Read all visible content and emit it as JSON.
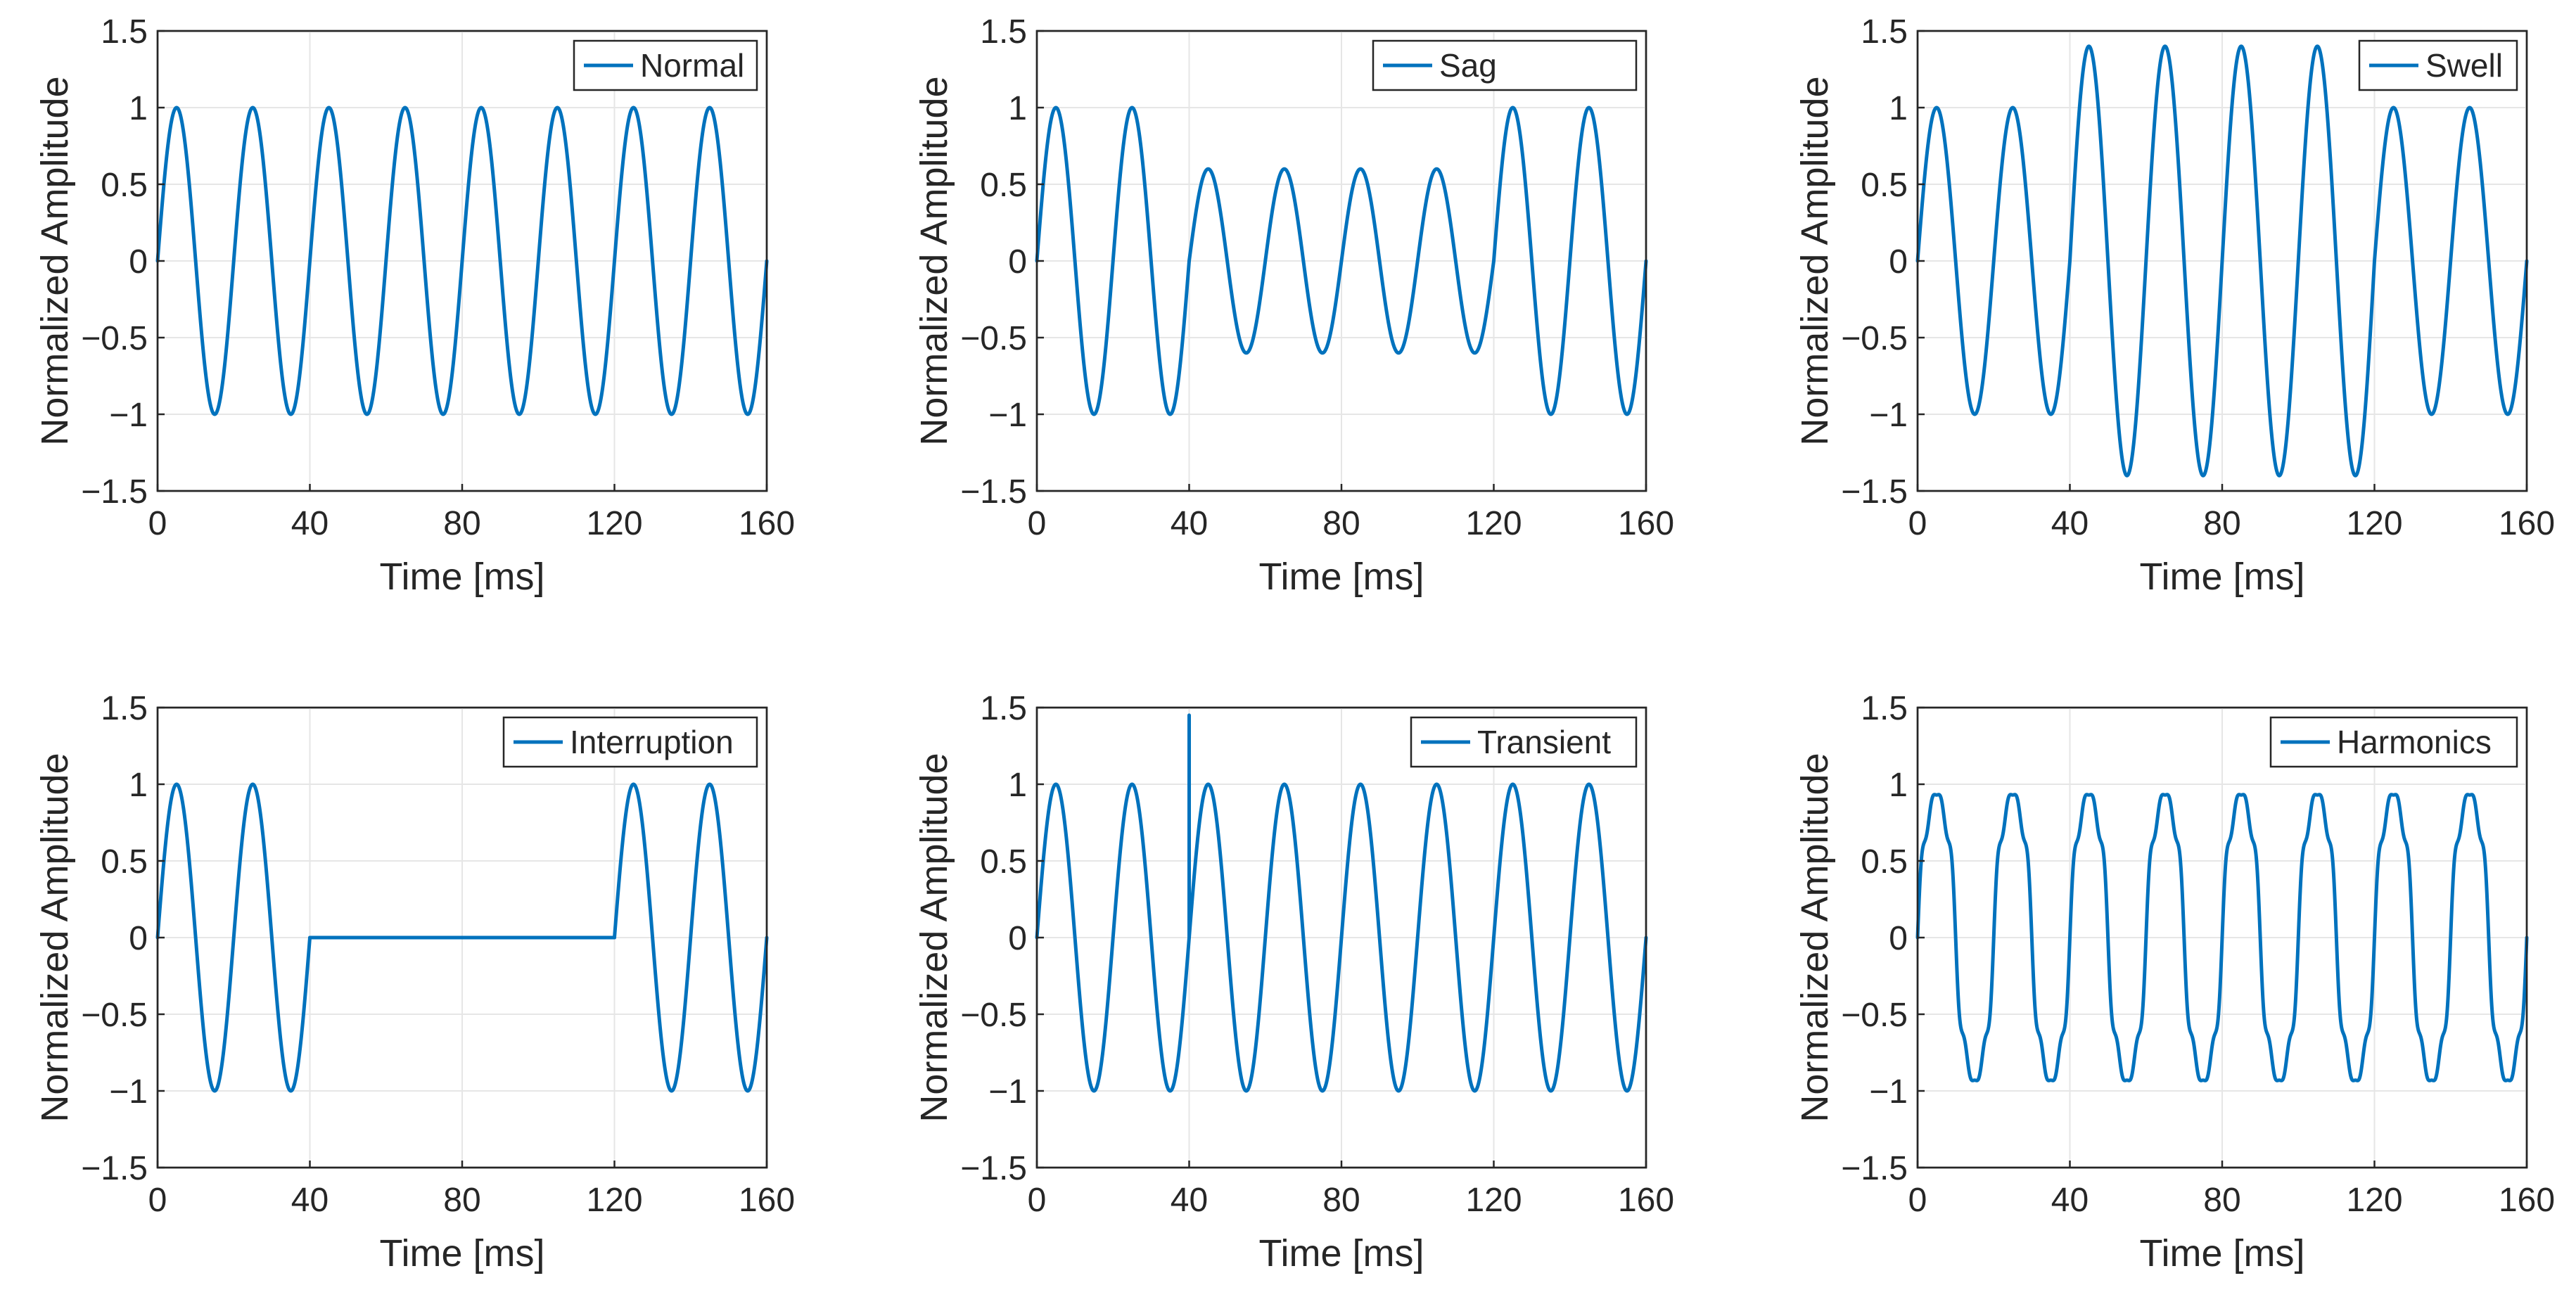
{
  "figure": {
    "line_color": "#0072BD"
  },
  "chart_data": [
    {
      "type": "line",
      "title": "",
      "legend": "Normal",
      "legend_position": "top-right",
      "xlabel": "Time [ms]",
      "ylabel": "Normalized Amplitude",
      "xlim": [
        0,
        160
      ],
      "ylim": [
        -1.5,
        1.5
      ],
      "xticks": [
        0,
        40,
        80,
        120,
        160
      ],
      "yticks": [
        1.5,
        1,
        0.5,
        0,
        -0.5,
        -1,
        -1.5
      ],
      "ytick_labels": [
        "1.5",
        "1",
        "0.5",
        "0",
        "−0.5",
        "−1",
        "−1.5"
      ],
      "grid": true,
      "signal": {
        "frequency_hz": 50,
        "amplitude": 1
      },
      "series": [
        {
          "name": "Normal",
          "x_range": [
            0,
            160
          ],
          "peak_values": [
            1,
            -1
          ]
        }
      ]
    },
    {
      "type": "line",
      "title": "",
      "legend": "Sag",
      "legend_position": "top-right",
      "xlabel": "Time [ms]",
      "ylabel": "Normalized Amplitude",
      "xlim": [
        0,
        160
      ],
      "ylim": [
        -1.5,
        1.5
      ],
      "xticks": [
        0,
        40,
        80,
        120,
        160
      ],
      "yticks": [
        1.5,
        1,
        0.5,
        0,
        -0.5,
        -1,
        -1.5
      ],
      "ytick_labels": [
        "1.5",
        "1",
        "0.5",
        "0",
        "−0.5",
        "−1",
        "−1.5"
      ],
      "grid": true,
      "signal": {
        "frequency_hz": 50,
        "amplitude": 1,
        "event_start_ms": 40,
        "event_end_ms": 120,
        "event_amplitude": 0.6
      },
      "series": [
        {
          "name": "Sag",
          "x_range": [
            0,
            160
          ],
          "peak_values": [
            1,
            -1
          ],
          "event_peak_values": [
            0.6,
            -0.6
          ]
        }
      ]
    },
    {
      "type": "line",
      "title": "",
      "legend": "Swell",
      "legend_position": "top-right",
      "xlabel": "Time [ms]",
      "ylabel": "Normalized Amplitude",
      "xlim": [
        0,
        160
      ],
      "ylim": [
        -1.5,
        1.5
      ],
      "xticks": [
        0,
        40,
        80,
        120,
        160
      ],
      "yticks": [
        1.5,
        1,
        0.5,
        0,
        -0.5,
        -1,
        -1.5
      ],
      "ytick_labels": [
        "1.5",
        "1",
        "0.5",
        "0",
        "−0.5",
        "−1",
        "−1.5"
      ],
      "grid": true,
      "signal": {
        "frequency_hz": 50,
        "amplitude": 1,
        "event_start_ms": 40,
        "event_end_ms": 120,
        "event_amplitude": 1.4
      },
      "series": [
        {
          "name": "Swell",
          "x_range": [
            0,
            160
          ],
          "peak_values": [
            1,
            -1
          ],
          "event_peak_values": [
            1.4,
            -1.4
          ]
        }
      ]
    },
    {
      "type": "line",
      "title": "",
      "legend": "Interruption",
      "legend_position": "top-right",
      "xlabel": "Time [ms]",
      "ylabel": "Normalized Amplitude",
      "xlim": [
        0,
        160
      ],
      "ylim": [
        -1.5,
        1.5
      ],
      "xticks": [
        0,
        40,
        80,
        120,
        160
      ],
      "yticks": [
        1.5,
        1,
        0.5,
        0,
        -0.5,
        -1,
        -1.5
      ],
      "ytick_labels": [
        "1.5",
        "1",
        "0.5",
        "0",
        "−0.5",
        "−1",
        "−1.5"
      ],
      "grid": true,
      "signal": {
        "frequency_hz": 50,
        "amplitude": 1,
        "event_start_ms": 40,
        "event_end_ms": 120,
        "event_amplitude": 0
      },
      "series": [
        {
          "name": "Interruption",
          "x_range": [
            0,
            160
          ],
          "peak_values": [
            1,
            -1
          ],
          "event_value": 0
        }
      ]
    },
    {
      "type": "line",
      "title": "",
      "legend": "Transient",
      "legend_position": "top-right",
      "xlabel": "Time [ms]",
      "ylabel": "Normalized Amplitude",
      "xlim": [
        0,
        160
      ],
      "ylim": [
        -1.5,
        1.5
      ],
      "xticks": [
        0,
        40,
        80,
        120,
        160
      ],
      "yticks": [
        1.5,
        1,
        0.5,
        0,
        -0.5,
        -1,
        -1.5
      ],
      "ytick_labels": [
        "1.5",
        "1",
        "0.5",
        "0",
        "−0.5",
        "−1",
        "−1.5"
      ],
      "grid": true,
      "signal": {
        "frequency_hz": 50,
        "amplitude": 1,
        "spike_time_ms": 40,
        "spike_peak": 1.45
      },
      "series": [
        {
          "name": "Transient",
          "x_range": [
            0,
            160
          ],
          "peak_values": [
            1,
            -1
          ],
          "spike": {
            "x": 40,
            "y": 1.45
          }
        }
      ]
    },
    {
      "type": "line",
      "title": "",
      "legend": "Harmonics",
      "legend_position": "top-right",
      "xlabel": "Time [ms]",
      "ylabel": "Normalized Amplitude",
      "xlim": [
        0,
        160
      ],
      "ylim": [
        -1.5,
        1.5
      ],
      "xticks": [
        0,
        40,
        80,
        120,
        160
      ],
      "yticks": [
        1.5,
        1,
        0.5,
        0,
        -0.5,
        -1,
        -1.5
      ],
      "ytick_labels": [
        "1.5",
        "1",
        "0.5",
        "0",
        "−0.5",
        "−1",
        "−1.5"
      ],
      "grid": true,
      "signal": {
        "frequency_hz": 50,
        "amplitude": 1,
        "harmonics": [
          {
            "order": 3,
            "amplitude": 0.1
          },
          {
            "order": 5,
            "amplitude": 0.08
          },
          {
            "order": 7,
            "amplitude": 0.05
          }
        ]
      },
      "series": [
        {
          "name": "Harmonics",
          "x_range": [
            0,
            160
          ],
          "peak_values": [
            1,
            -1
          ]
        }
      ]
    }
  ]
}
